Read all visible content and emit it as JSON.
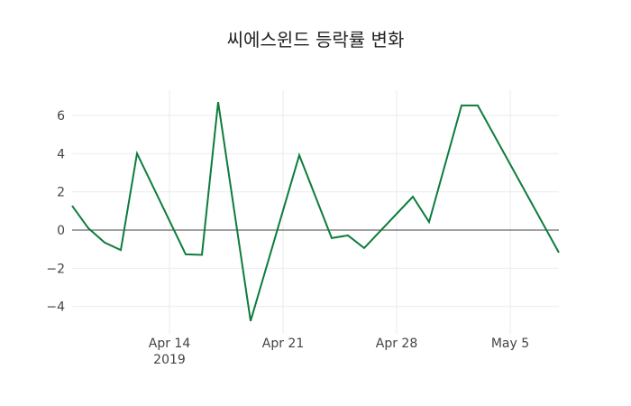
{
  "chart_data": {
    "type": "line",
    "title": "씨에스윈드 등락률 변화",
    "xlabel": "",
    "ylabel": "",
    "x": [
      "2019-04-08",
      "2019-04-09",
      "2019-04-10",
      "2019-04-11",
      "2019-04-12",
      "2019-04-15",
      "2019-04-16",
      "2019-04-17",
      "2019-04-19",
      "2019-04-22",
      "2019-04-24",
      "2019-04-25",
      "2019-04-26",
      "2019-04-29",
      "2019-04-30",
      "2019-05-02",
      "2019-05-03",
      "2019-05-08"
    ],
    "series": [
      {
        "name": "등락률",
        "color": "#0d7c3d",
        "values": [
          1.27,
          0.1,
          -0.65,
          -1.05,
          4.01,
          -1.27,
          -1.3,
          6.7,
          -4.76,
          3.92,
          -0.42,
          -0.28,
          -0.94,
          1.75,
          0.42,
          6.52,
          6.52,
          -1.18
        ]
      }
    ],
    "x_ticks": [
      {
        "date": "2019-04-14",
        "label": "Apr 14",
        "sublabel": "2019"
      },
      {
        "date": "2019-04-21",
        "label": "Apr 21",
        "sublabel": ""
      },
      {
        "date": "2019-04-28",
        "label": "Apr 28",
        "sublabel": ""
      },
      {
        "date": "2019-05-05",
        "label": "May 5",
        "sublabel": ""
      }
    ],
    "y_ticks": [
      -4,
      -2,
      0,
      2,
      4,
      6
    ],
    "y_tick_labels": [
      "−4",
      "−2",
      "0",
      "2",
      "4",
      "6"
    ],
    "xlim": [
      "2019-04-08",
      "2019-05-08"
    ],
    "ylim": [
      -5.43,
      7.32
    ],
    "grid": true,
    "zero_line": true,
    "legend": null
  }
}
